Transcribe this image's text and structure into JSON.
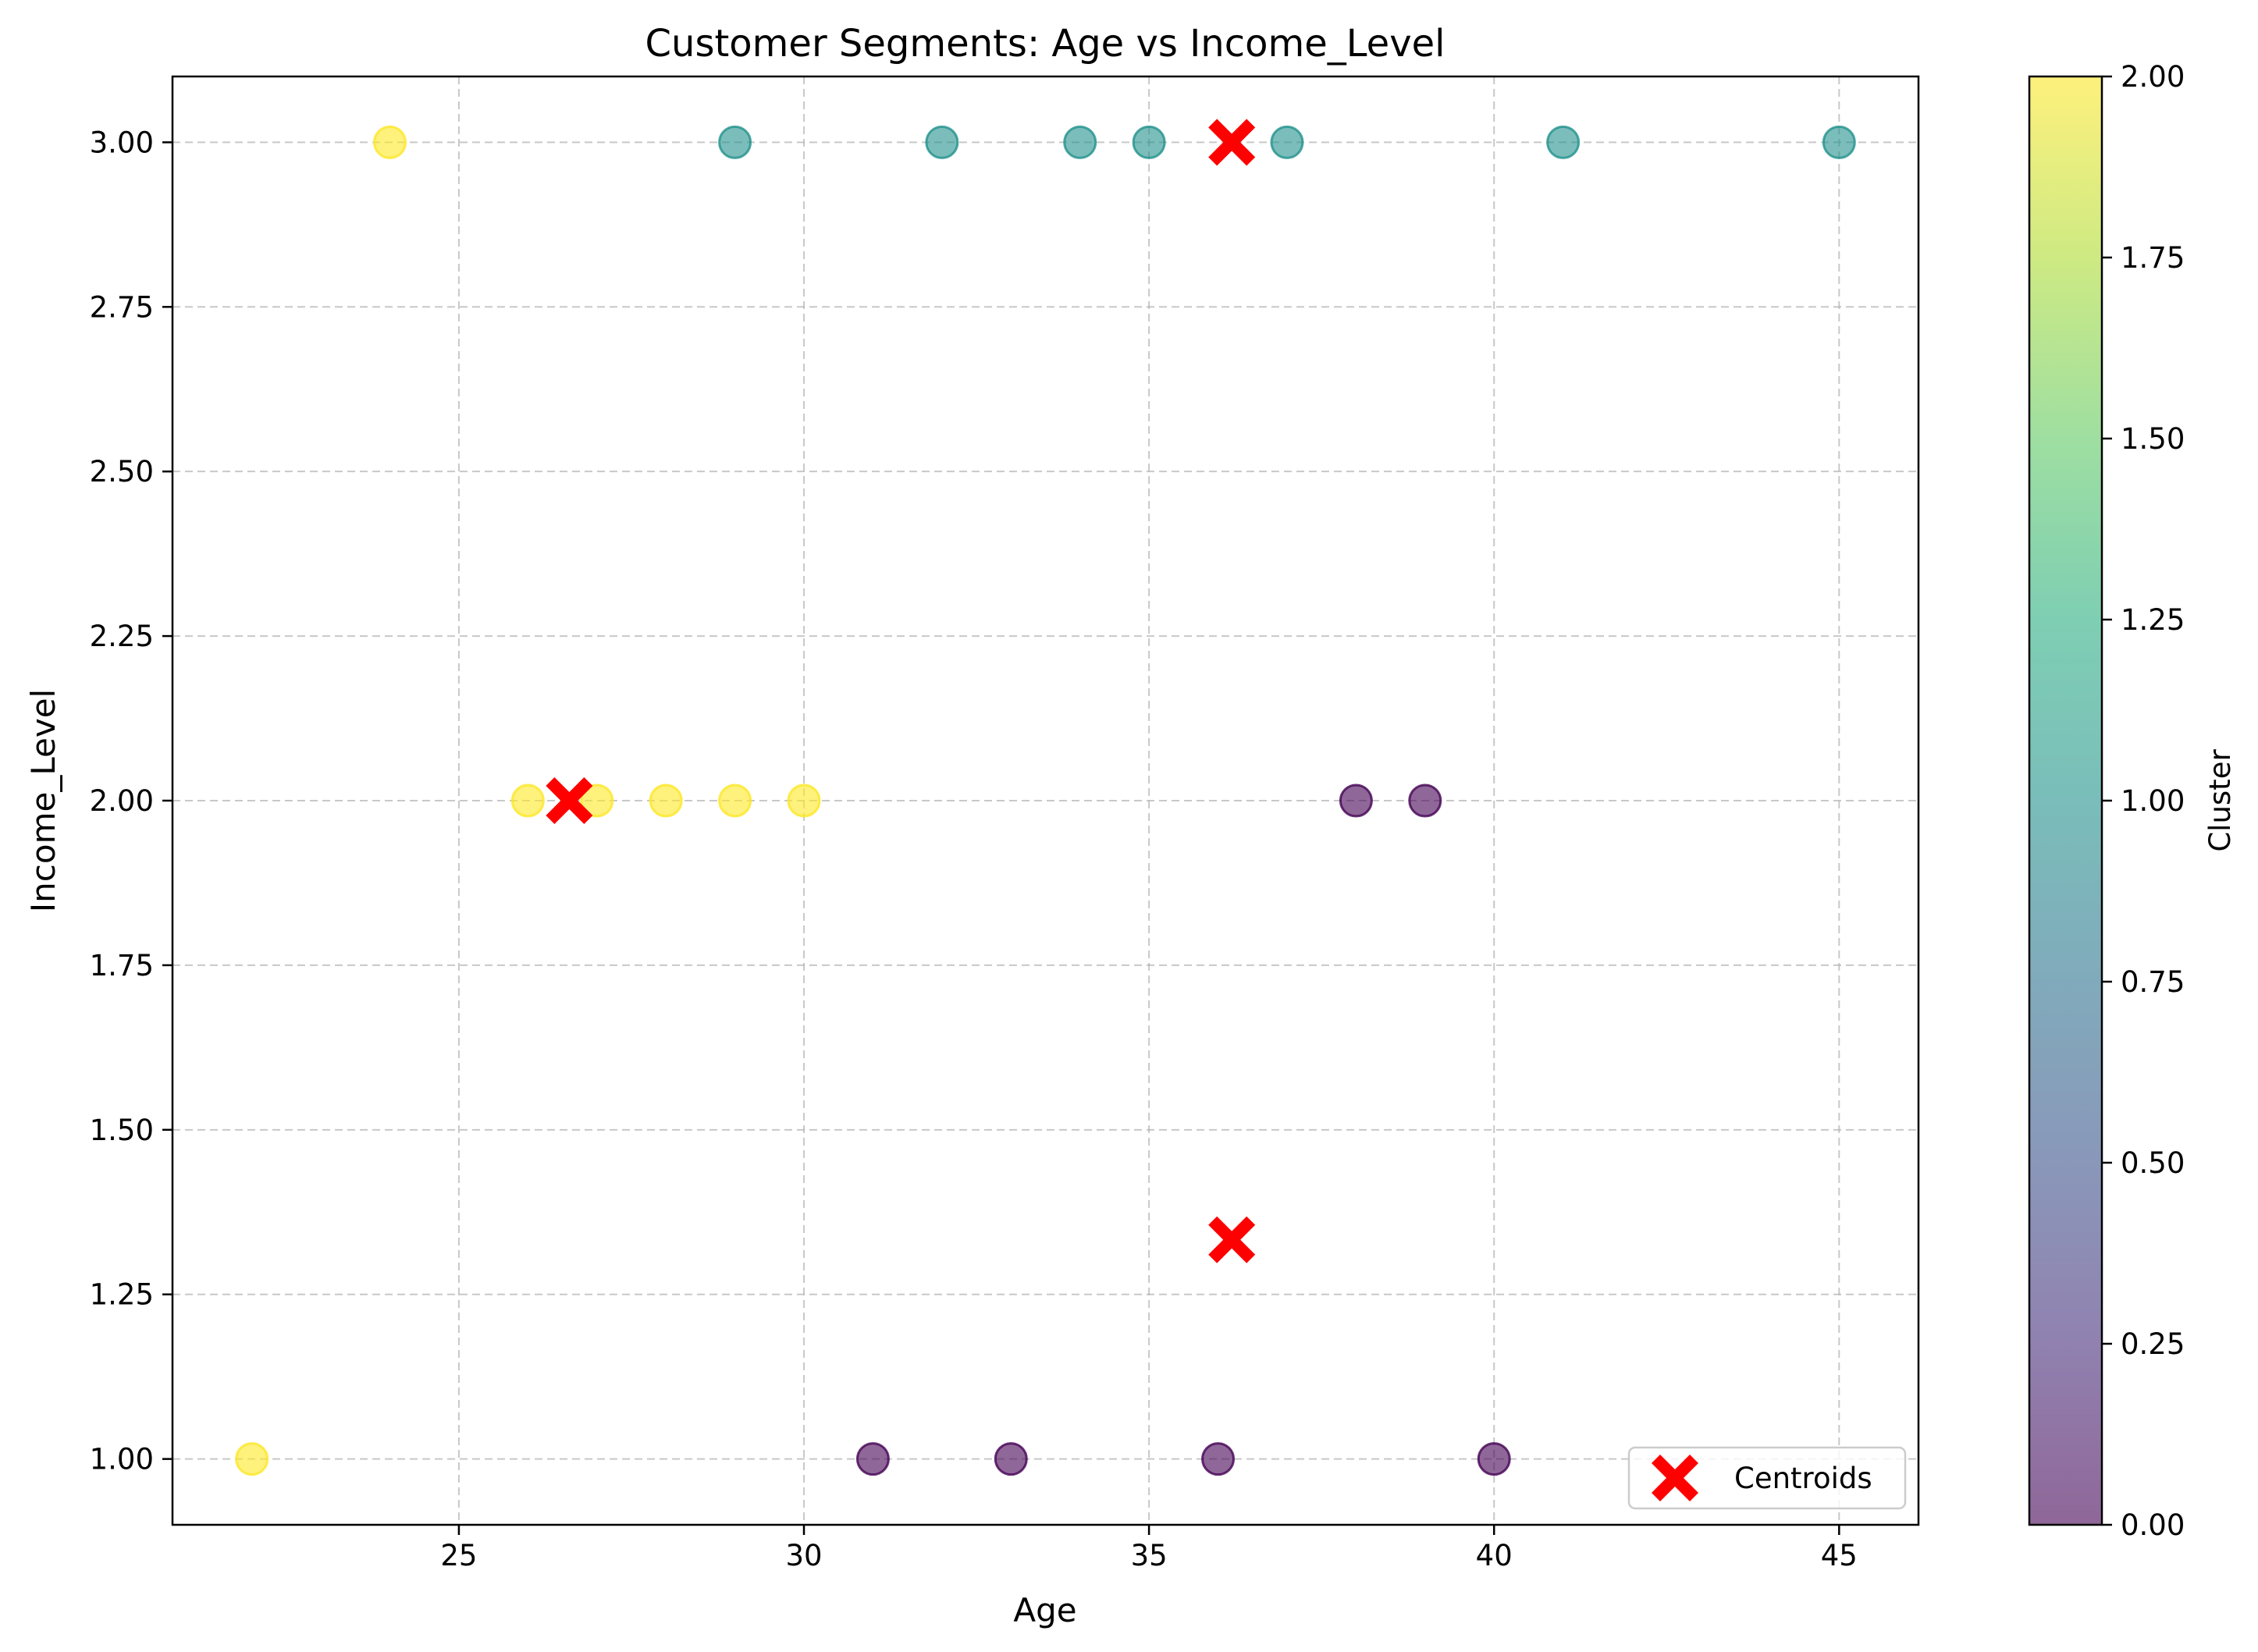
{
  "chart_data": {
    "type": "scatter",
    "title": "Customer Segments: Age vs Income_Level",
    "xlabel": "Age",
    "ylabel": "Income_Level",
    "xlim": [
      20.85,
      46.15
    ],
    "ylim": [
      0.9,
      3.1
    ],
    "xticks": [
      25,
      30,
      35,
      40,
      45
    ],
    "xtick_labels": [
      "25",
      "30",
      "35",
      "40",
      "45"
    ],
    "yticks": [
      1.0,
      1.25,
      1.5,
      1.75,
      2.0,
      2.25,
      2.5,
      2.75,
      3.0
    ],
    "ytick_labels": [
      "1.00",
      "1.25",
      "1.50",
      "1.75",
      "2.00",
      "2.25",
      "2.50",
      "2.75",
      "3.00"
    ],
    "grid": true,
    "legend": {
      "position": "lower-right",
      "entries": [
        "Centroids"
      ]
    },
    "cluster_colors": {
      "0": "#440154",
      "1": "#21918c",
      "2": "#fde725"
    },
    "point_alpha": 0.6,
    "points": [
      {
        "x": 24,
        "y": 3,
        "cluster": 2
      },
      {
        "x": 29,
        "y": 3,
        "cluster": 1
      },
      {
        "x": 32,
        "y": 3,
        "cluster": 1
      },
      {
        "x": 34,
        "y": 3,
        "cluster": 1
      },
      {
        "x": 35,
        "y": 3,
        "cluster": 1
      },
      {
        "x": 37,
        "y": 3,
        "cluster": 1
      },
      {
        "x": 41,
        "y": 3,
        "cluster": 1
      },
      {
        "x": 45,
        "y": 3,
        "cluster": 1
      },
      {
        "x": 26,
        "y": 2,
        "cluster": 2
      },
      {
        "x": 27,
        "y": 2,
        "cluster": 2
      },
      {
        "x": 28,
        "y": 2,
        "cluster": 2
      },
      {
        "x": 29,
        "y": 2,
        "cluster": 2
      },
      {
        "x": 30,
        "y": 2,
        "cluster": 2
      },
      {
        "x": 38,
        "y": 2,
        "cluster": 0
      },
      {
        "x": 39,
        "y": 2,
        "cluster": 0
      },
      {
        "x": 22,
        "y": 1,
        "cluster": 2
      },
      {
        "x": 31,
        "y": 1,
        "cluster": 0
      },
      {
        "x": 33,
        "y": 1,
        "cluster": 0
      },
      {
        "x": 36,
        "y": 1,
        "cluster": 0
      },
      {
        "x": 40,
        "y": 1,
        "cluster": 0
      }
    ],
    "centroids": {
      "name": "Centroids",
      "color": "#ff0000",
      "marker": "X",
      "points": [
        {
          "x": 36.2,
          "y": 3.0
        },
        {
          "x": 26.6,
          "y": 2.0
        },
        {
          "x": 36.2,
          "y": 1.333
        }
      ]
    },
    "colorbar": {
      "label": "Cluster",
      "colormap": "viridis",
      "range": [
        0,
        2
      ],
      "ticks": [
        0,
        0.25,
        0.5,
        0.75,
        1.0,
        1.25,
        1.5,
        1.75,
        2.0
      ],
      "tick_labels": [
        "0.00",
        "0.25",
        "0.50",
        "0.75",
        "1.00",
        "1.25",
        "1.50",
        "1.75",
        "2.00"
      ]
    }
  }
}
